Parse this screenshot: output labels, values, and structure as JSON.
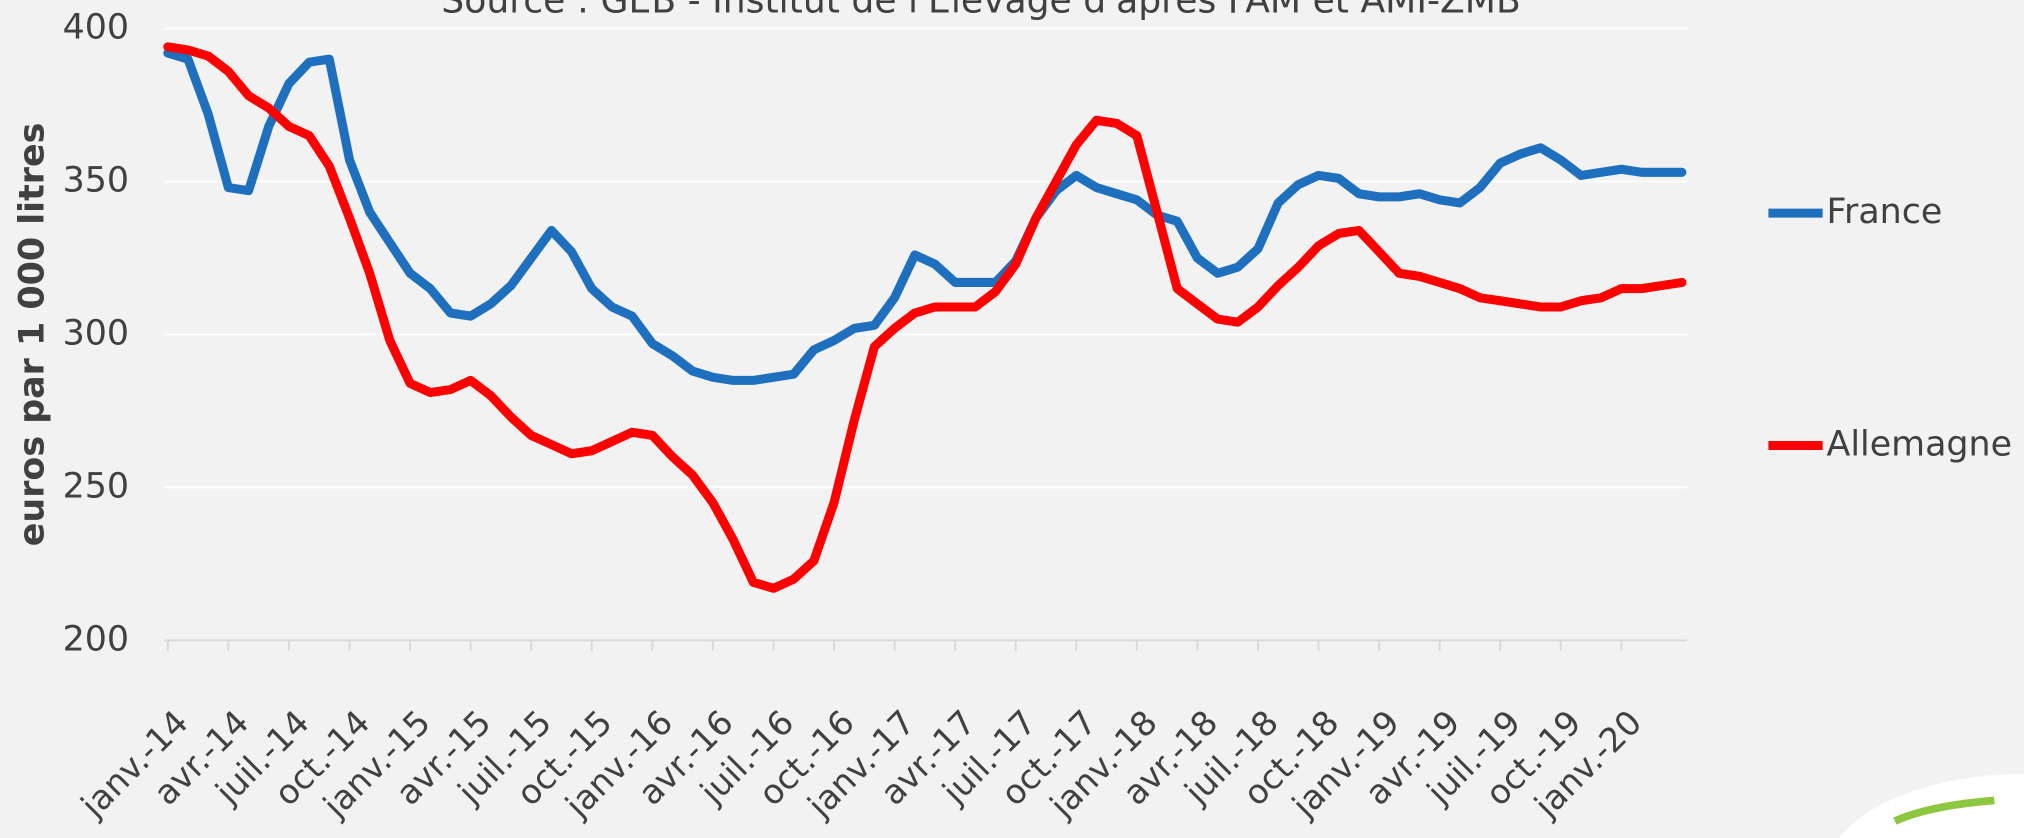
{
  "chart_data": {
    "type": "line",
    "subtitle": "Source : GEB - Institut de l'Elevage d'après FAM et AMI-ZMB",
    "y_label": "euros par 1 000 litres",
    "categories": [
      "janv.-14",
      null,
      null,
      "avr.-14",
      null,
      null,
      "juil.-14",
      null,
      null,
      "oct.-14",
      null,
      null,
      "janv.-15",
      null,
      null,
      "avr.-15",
      null,
      null,
      "juil.-15",
      null,
      null,
      "oct.-15",
      null,
      null,
      "janv.-16",
      null,
      null,
      "avr.-16",
      null,
      null,
      "juil.-16",
      null,
      null,
      "oct.-16",
      null,
      null,
      "janv.-17",
      null,
      null,
      "avr.-17",
      null,
      null,
      "juil.-17",
      null,
      null,
      "oct.-17",
      null,
      null,
      "janv.-18",
      null,
      null,
      "avr.-18",
      null,
      null,
      "juil.-18",
      null,
      null,
      "oct.-18",
      null,
      null,
      "janv.-19",
      null,
      null,
      "avr.-19",
      null,
      null,
      "juil.-19",
      null,
      null,
      "oct.-19",
      null,
      null,
      "janv.-20",
      null,
      null,
      null
    ],
    "series": [
      {
        "name": "France",
        "color": "#1f6fbf",
        "values": [
          392,
          390,
          372,
          348,
          347,
          368,
          382,
          389,
          390,
          357,
          340,
          330,
          320,
          315,
          307,
          306,
          310,
          316,
          325,
          334,
          327,
          315,
          309,
          306,
          297,
          293,
          288,
          286,
          285,
          285,
          286,
          287,
          295,
          298,
          302,
          303,
          312,
          326,
          323,
          317,
          317,
          317,
          324,
          338,
          347,
          352,
          348,
          346,
          344,
          339,
          337,
          325,
          320,
          322,
          328,
          343,
          349,
          352,
          351,
          346,
          345,
          345,
          346,
          344,
          343,
          348,
          356,
          359,
          361,
          357,
          352,
          353,
          354,
          353,
          353,
          353
        ]
      },
      {
        "name": "Allemagne",
        "color": "#ff0000",
        "values": [
          394,
          393,
          391,
          386,
          378,
          374,
          368,
          365,
          355,
          338,
          320,
          298,
          284,
          281,
          282,
          285,
          280,
          273,
          267,
          264,
          261,
          262,
          265,
          268,
          267,
          260,
          254,
          245,
          233,
          219,
          217,
          220,
          226,
          245,
          272,
          296,
          302,
          307,
          309,
          309,
          309,
          314,
          323,
          338,
          350,
          362,
          370,
          369,
          365,
          340,
          315,
          310,
          305,
          304,
          309,
          316,
          322,
          329,
          333,
          334,
          327,
          320,
          319,
          317,
          315,
          312,
          311,
          310,
          309,
          309,
          311,
          312,
          315,
          315,
          316,
          317
        ]
      }
    ],
    "ylim": [
      200,
      400
    ],
    "yticks": [
      200,
      250,
      300,
      350,
      400
    ],
    "grid": true
  }
}
